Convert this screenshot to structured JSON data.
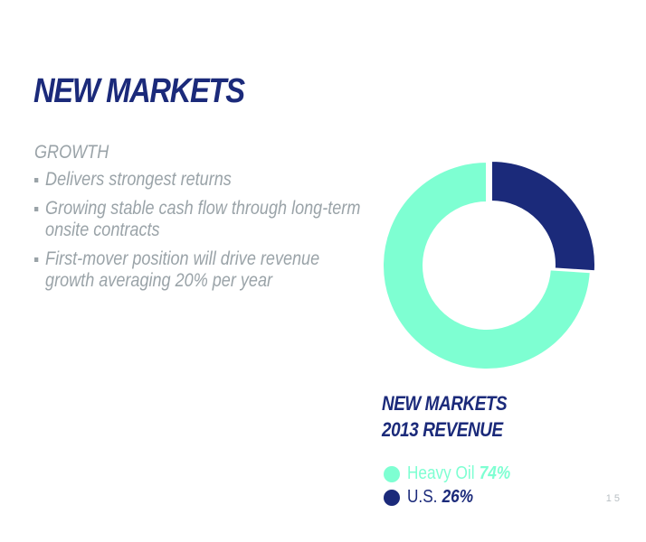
{
  "slide": {
    "title": "NEW MARKETS",
    "section_label": "GROWTH",
    "bullets": [
      "Delivers strongest returns",
      "Growing stable cash flow through long-term onsite contracts",
      "First-mover position will drive revenue growth averaging 20% per year"
    ],
    "page_number": "15"
  },
  "colors": {
    "heavy_oil": "#7effd2",
    "us": "#1b2a7a",
    "title": "#1b2a7a",
    "body_text": "#9aa3a8"
  },
  "chart_data": {
    "type": "pie",
    "style": "donut",
    "title_line1": "NEW MARKETS",
    "title_line2": "2013 REVENUE",
    "start_angle_deg": 0,
    "direction": "clockwise",
    "legend_placement": "below",
    "slices": [
      {
        "name": "U.S.",
        "value": 26,
        "label": "26%",
        "color": "#1b2a7a"
      },
      {
        "name": "Heavy Oil",
        "value": 74,
        "label": "74%",
        "color": "#7effd2"
      }
    ],
    "legend_order": [
      1,
      0
    ]
  }
}
